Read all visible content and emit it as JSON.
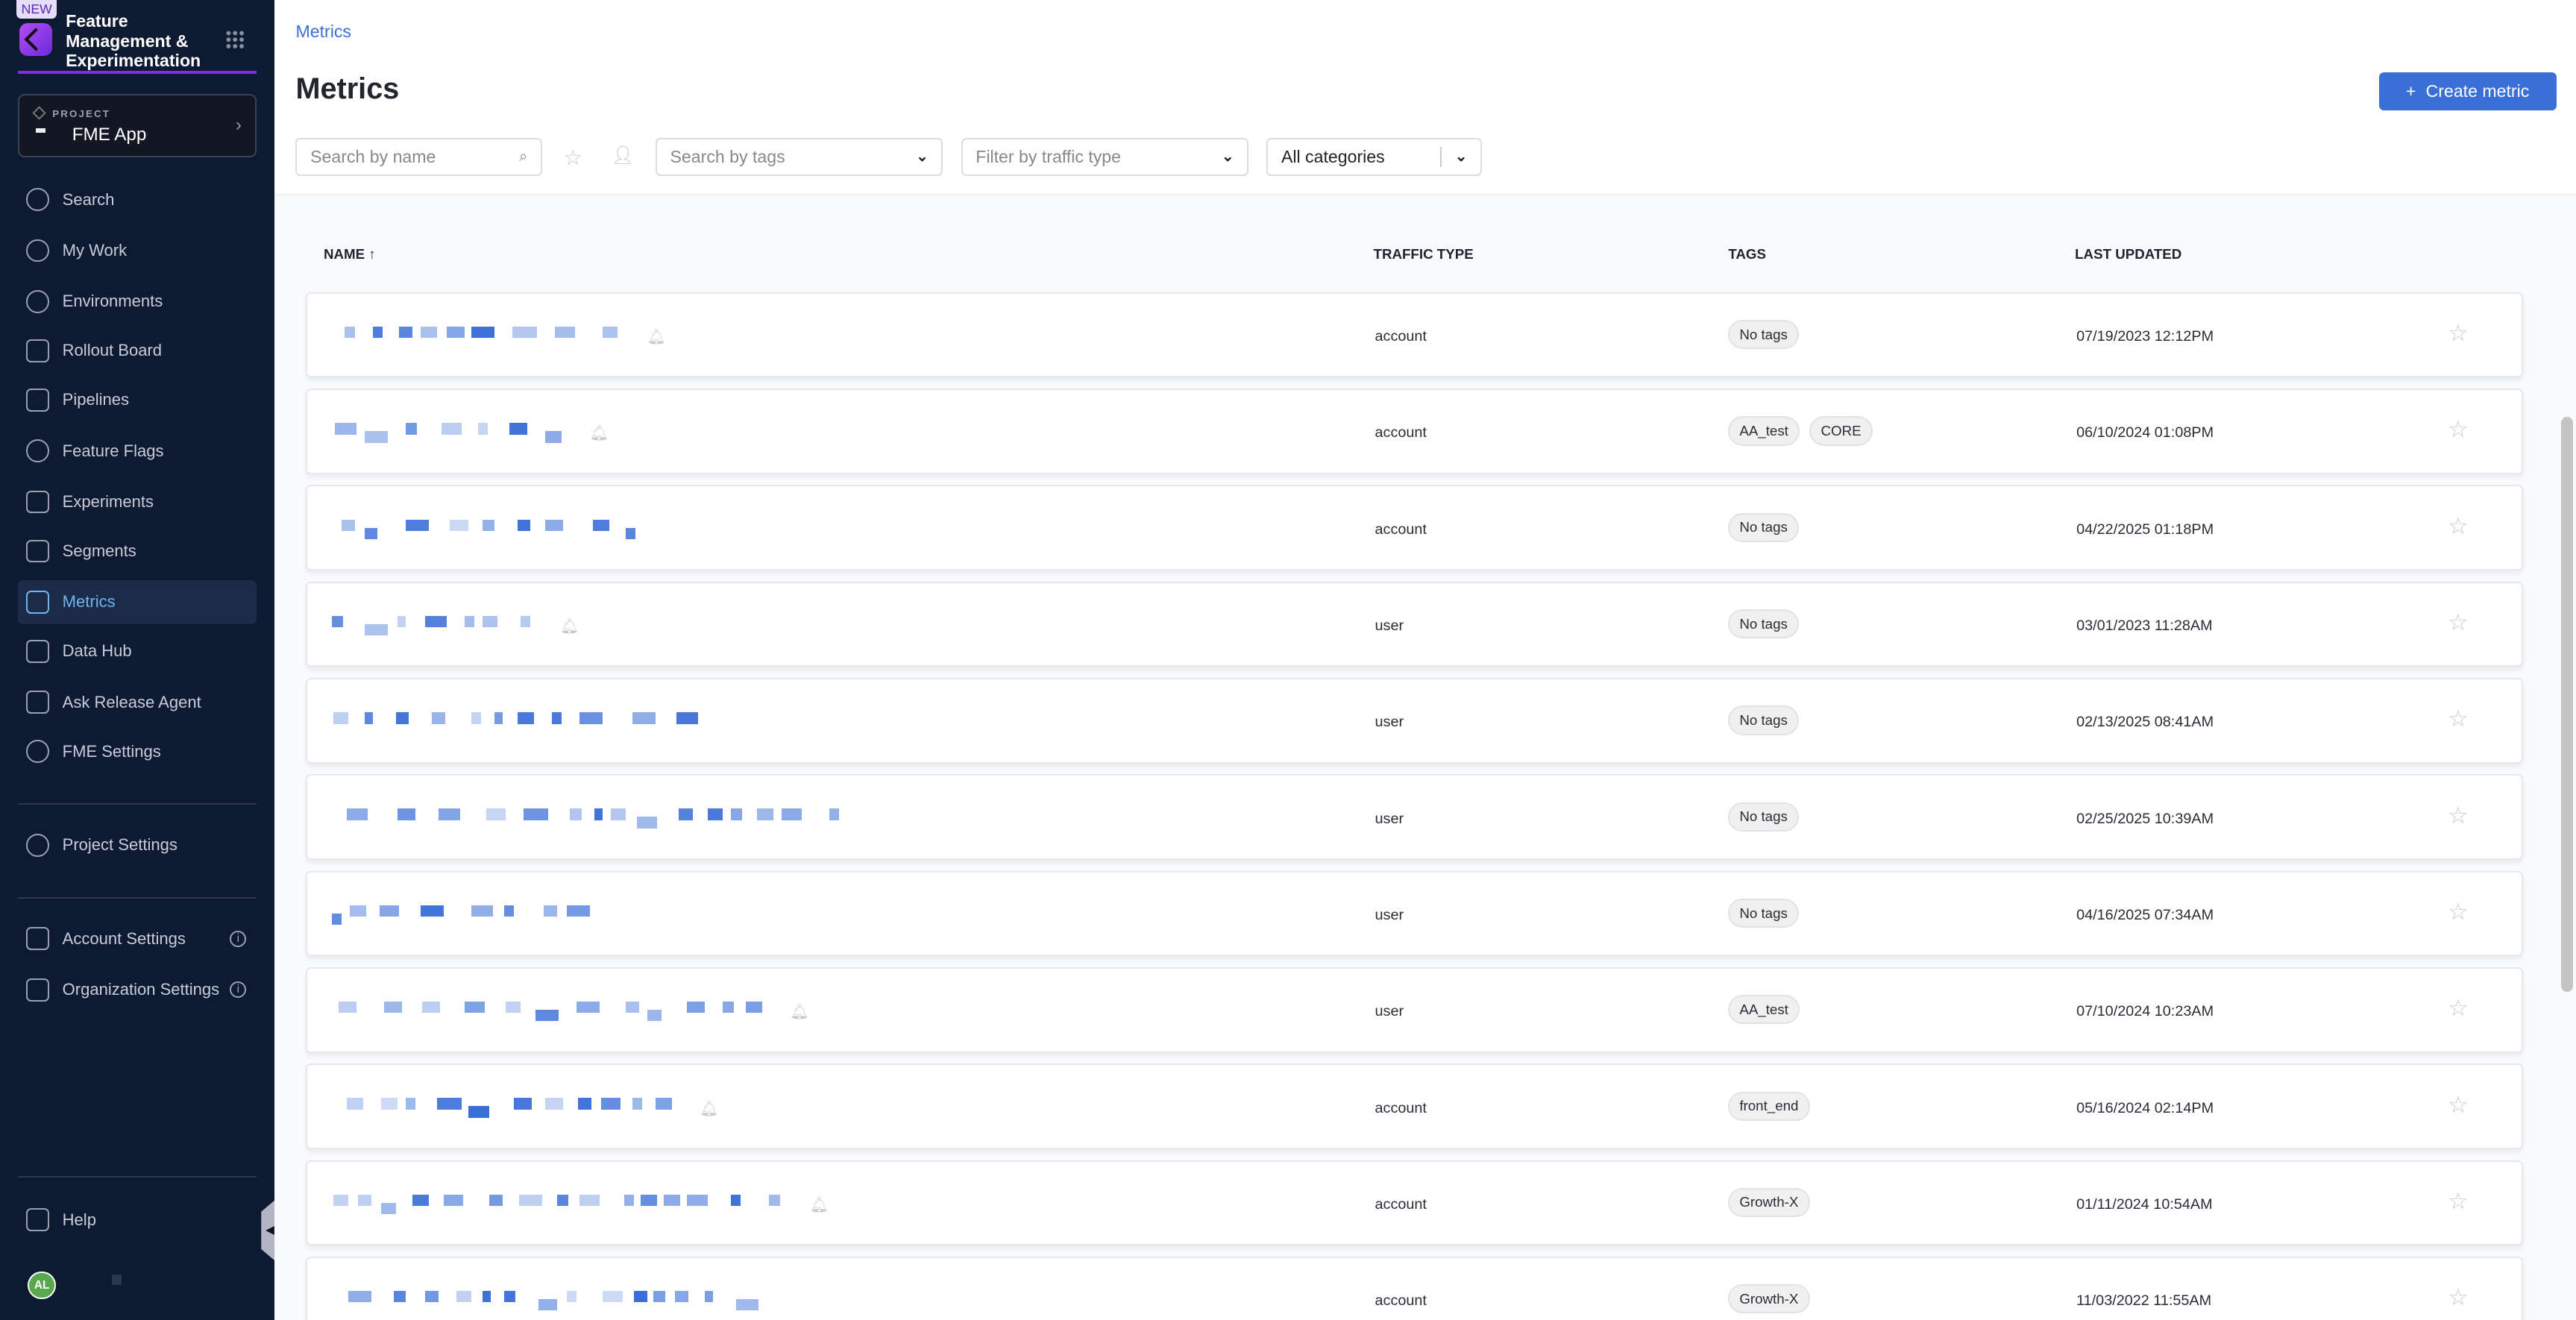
{
  "sidebar": {
    "badge": "NEW",
    "app_title": "Feature Management & Experimentation",
    "project": {
      "label": "PROJECT",
      "name": "FME App"
    },
    "items": [
      {
        "label": "Search",
        "icon": "search-icon"
      },
      {
        "label": "My Work",
        "icon": "user-icon"
      },
      {
        "label": "Environments",
        "icon": "hexagons-icon"
      },
      {
        "label": "Rollout Board",
        "icon": "board-icon"
      },
      {
        "label": "Pipelines",
        "icon": "pipeline-icon"
      },
      {
        "label": "Feature Flags",
        "icon": "flag-icon"
      },
      {
        "label": "Experiments",
        "icon": "ruler-icon"
      },
      {
        "label": "Segments",
        "icon": "people-icon"
      },
      {
        "label": "Metrics",
        "icon": "chart-line-icon",
        "active": true
      },
      {
        "label": "Data Hub",
        "icon": "grid-icon"
      },
      {
        "label": "Ask Release Agent",
        "icon": "sparkle-icon"
      },
      {
        "label": "FME Settings",
        "icon": "settings-icon"
      }
    ],
    "project_settings": "Project Settings",
    "account_settings": "Account Settings",
    "organization_settings": "Organization Settings",
    "help": "Help",
    "avatar_initials": "AL",
    "colors": {
      "background": "#0e1a31",
      "active": "#6fb4f0",
      "accent": "#7a2ee6"
    }
  },
  "main": {
    "breadcrumb": "Metrics",
    "title": "Metrics",
    "create_button": "Create metric",
    "filters": {
      "search_placeholder": "Search by name",
      "tags_placeholder": "Search by tags",
      "traffic_placeholder": "Filter by traffic type",
      "category": "All categories"
    },
    "columns": {
      "name": "NAME",
      "traffic_type": "TRAFFIC TYPE",
      "tags": "TAGS",
      "last_updated": "LAST UPDATED"
    },
    "rows": [
      {
        "traffic_type": "account",
        "tags": [
          "No tags"
        ],
        "last_updated": "07/19/2023 12:12PM",
        "alert_icon": true
      },
      {
        "traffic_type": "account",
        "tags": [
          "AA_test",
          "CORE"
        ],
        "last_updated": "06/10/2024 01:08PM",
        "alert_icon": true
      },
      {
        "traffic_type": "account",
        "tags": [
          "No tags"
        ],
        "last_updated": "04/22/2025 01:18PM",
        "alert_icon": false
      },
      {
        "traffic_type": "user",
        "tags": [
          "No tags"
        ],
        "last_updated": "03/01/2023 11:28AM",
        "alert_icon": true
      },
      {
        "traffic_type": "user",
        "tags": [
          "No tags"
        ],
        "last_updated": "02/13/2025 08:41AM",
        "alert_icon": false
      },
      {
        "traffic_type": "user",
        "tags": [
          "No tags"
        ],
        "last_updated": "02/25/2025 10:39AM",
        "alert_icon": false
      },
      {
        "traffic_type": "user",
        "tags": [
          "No tags"
        ],
        "last_updated": "04/16/2025 07:34AM",
        "alert_icon": false
      },
      {
        "traffic_type": "user",
        "tags": [
          "AA_test"
        ],
        "last_updated": "07/10/2024 10:23AM",
        "alert_icon": true
      },
      {
        "traffic_type": "account",
        "tags": [
          "front_end"
        ],
        "last_updated": "05/16/2024 02:14PM",
        "alert_icon": true
      },
      {
        "traffic_type": "account",
        "tags": [
          "Growth-X"
        ],
        "last_updated": "01/11/2024 10:54AM",
        "alert_icon": true
      },
      {
        "traffic_type": "account",
        "tags": [
          "Growth-X"
        ],
        "last_updated": "11/03/2022 11:55AM",
        "alert_icon": false
      }
    ],
    "colors": {
      "primary": "#3b6fd8"
    }
  }
}
